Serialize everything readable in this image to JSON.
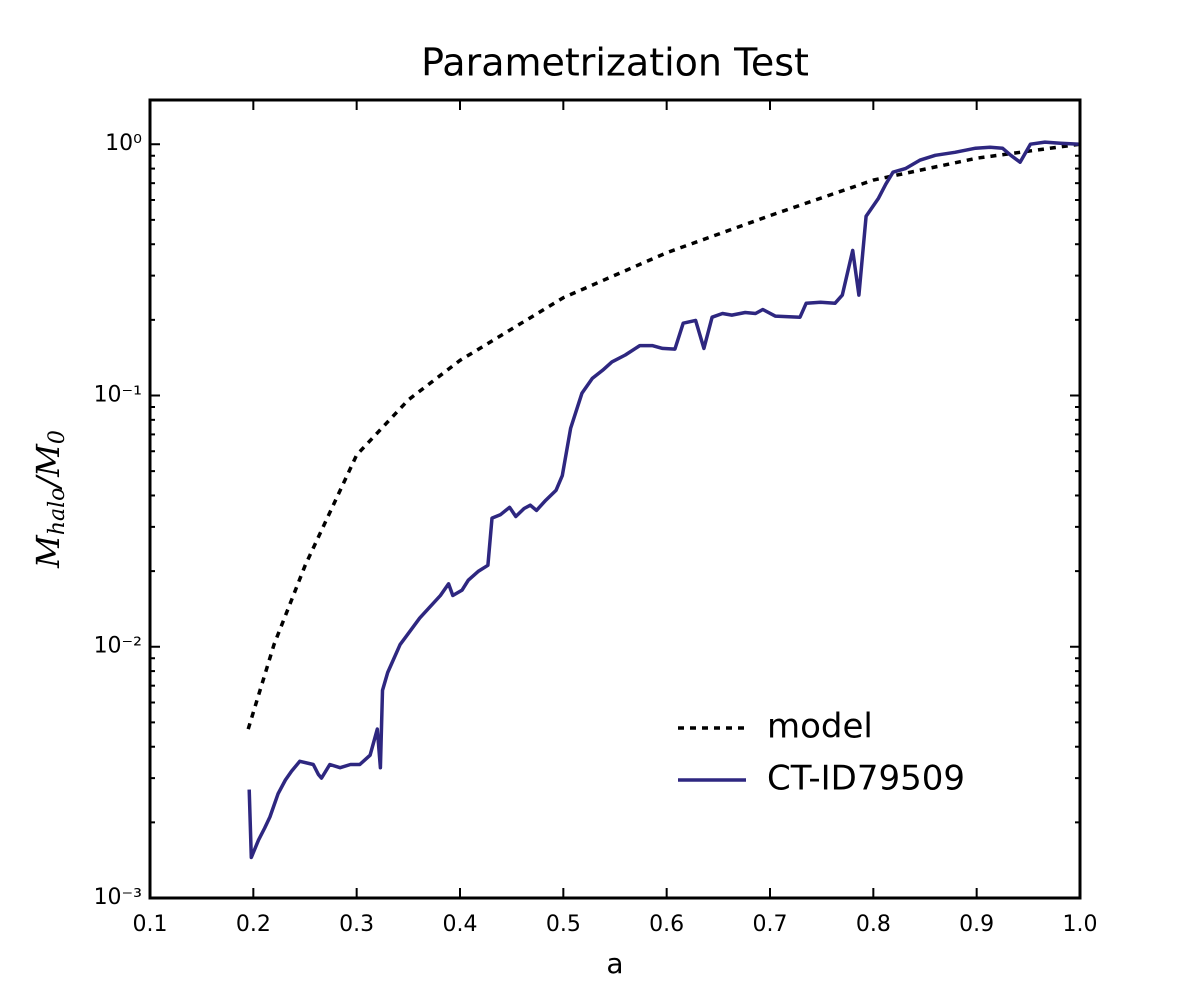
{
  "chart_data": {
    "type": "line",
    "title": "Parametrization Test",
    "xlabel": "a",
    "ylabel_parts": [
      "M",
      "halo",
      "/M",
      "0"
    ],
    "log_y": true,
    "grid": false,
    "legend": "lower right",
    "xlim": [
      0.1,
      1.0
    ],
    "ylim": [
      0.001,
      1.5
    ],
    "xticks": [
      0.1,
      0.2,
      0.3,
      0.4,
      0.5,
      0.6,
      0.7,
      0.8,
      0.9,
      {
        "value": 1.0,
        "label": "1.0"
      }
    ],
    "yticks": [
      {
        "value": 0.001,
        "label": "10⁻³"
      },
      {
        "value": 0.01,
        "label": "10⁻²"
      },
      {
        "value": 0.1,
        "label": "10⁻¹"
      },
      {
        "value": 1,
        "label": "10⁰"
      }
    ],
    "series": [
      {
        "name": "model",
        "color": "#000000",
        "dash": "dotted",
        "x": [
          0.195,
          0.22,
          0.25,
          0.3,
          0.35,
          0.4,
          0.5,
          0.6,
          0.7,
          0.8,
          0.9,
          1.0
        ],
        "values": [
          0.0047,
          0.0102,
          0.021,
          0.058,
          0.096,
          0.138,
          0.245,
          0.37,
          0.52,
          0.72,
          0.88,
          1.0
        ]
      },
      {
        "name": "CT-ID79509",
        "color": "#2e2780",
        "dash": "solid",
        "x": [
          0.196,
          0.198,
          0.205,
          0.211,
          0.216,
          0.224,
          0.231,
          0.237,
          0.245,
          0.258,
          0.263,
          0.266,
          0.274,
          0.284,
          0.294,
          0.303,
          0.313,
          0.32,
          0.323,
          0.325,
          0.33,
          0.342,
          0.361,
          0.381,
          0.389,
          0.393,
          0.402,
          0.408,
          0.418,
          0.427,
          0.431,
          0.439,
          0.448,
          0.454,
          0.462,
          0.468,
          0.474,
          0.483,
          0.493,
          0.499,
          0.507,
          0.518,
          0.528,
          0.538,
          0.547,
          0.56,
          0.574,
          0.586,
          0.596,
          0.608,
          0.616,
          0.628,
          0.636,
          0.644,
          0.654,
          0.663,
          0.676,
          0.686,
          0.693,
          0.705,
          0.729,
          0.735,
          0.749,
          0.763,
          0.77,
          0.78,
          0.786,
          0.793,
          0.805,
          0.812,
          0.819,
          0.831,
          0.845,
          0.86,
          0.879,
          0.899,
          0.913,
          0.925,
          0.933,
          0.942,
          0.952,
          0.966,
          0.981,
          1.0
        ],
        "values": [
          0.0027,
          0.00145,
          0.0017,
          0.0019,
          0.0021,
          0.0026,
          0.00295,
          0.0032,
          0.0035,
          0.0034,
          0.0031,
          0.003,
          0.0034,
          0.0033,
          0.0034,
          0.0034,
          0.0037,
          0.0047,
          0.0033,
          0.0067,
          0.0079,
          0.0102,
          0.013,
          0.016,
          0.0178,
          0.016,
          0.0168,
          0.0184,
          0.02,
          0.0211,
          0.0325,
          0.0335,
          0.0359,
          0.033,
          0.0355,
          0.0366,
          0.0349,
          0.0383,
          0.042,
          0.048,
          0.074,
          0.102,
          0.117,
          0.126,
          0.136,
          0.145,
          0.158,
          0.158,
          0.154,
          0.153,
          0.194,
          0.199,
          0.154,
          0.205,
          0.212,
          0.209,
          0.214,
          0.212,
          0.22,
          0.207,
          0.205,
          0.233,
          0.235,
          0.233,
          0.251,
          0.378,
          0.251,
          0.517,
          0.61,
          0.693,
          0.774,
          0.8,
          0.864,
          0.904,
          0.929,
          0.964,
          0.973,
          0.964,
          0.904,
          0.848,
          1.0,
          1.02,
          1.01,
          1.0
        ]
      }
    ]
  }
}
